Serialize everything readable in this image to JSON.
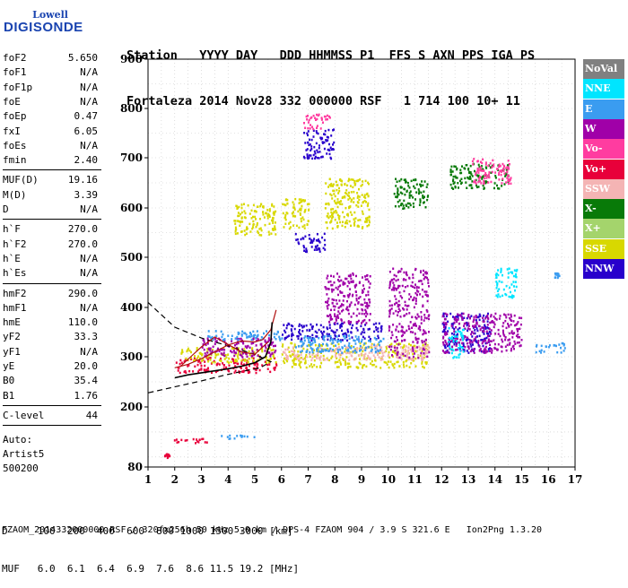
{
  "logo": {
    "line1": "Lowell",
    "line2": "DIGISONDE"
  },
  "header": {
    "row1": "Station   YYYY DAY   DDD HHMMSS P1  FFS S AXN PPS IGA PS",
    "row2": "Fortaleza 2014 Nov28 332 000000 RSF   1 714 100 10+ 11"
  },
  "params_group1": [
    {
      "k": "foF2",
      "v": "5.650"
    },
    {
      "k": "foF1",
      "v": "N/A"
    },
    {
      "k": "foF1p",
      "v": "N/A"
    },
    {
      "k": "foE",
      "v": "N/A"
    },
    {
      "k": "foEp",
      "v": "0.47"
    },
    {
      "k": "fxI",
      "v": "6.05"
    },
    {
      "k": "foEs",
      "v": "N/A"
    },
    {
      "k": "fmin",
      "v": "2.40"
    }
  ],
  "params_group2": [
    {
      "k": "MUF(D)",
      "v": "19.16"
    },
    {
      "k": "M(D)",
      "v": "3.39"
    },
    {
      "k": "D",
      "v": "N/A"
    }
  ],
  "params_group3": [
    {
      "k": "h`F",
      "v": "270.0"
    },
    {
      "k": "h`F2",
      "v": "270.0"
    },
    {
      "k": "h`E",
      "v": "N/A"
    },
    {
      "k": "h`Es",
      "v": "N/A"
    }
  ],
  "params_group4": [
    {
      "k": "hmF2",
      "v": "290.0"
    },
    {
      "k": "hmF1",
      "v": "N/A"
    },
    {
      "k": "hmE",
      "v": "110.0"
    },
    {
      "k": "yF2",
      "v": "33.3"
    },
    {
      "k": "yF1",
      "v": "N/A"
    },
    {
      "k": "yE",
      "v": "20.0"
    },
    {
      "k": "B0",
      "v": "35.4"
    },
    {
      "k": "B1",
      "v": "1.76"
    }
  ],
  "params_group5": [
    {
      "k": "C-level",
      "v": "44"
    }
  ],
  "autoscale": {
    "line1": "Auto:",
    "line2": "Artist5",
    "line3": "500200"
  },
  "legend": [
    {
      "label": "NoVal",
      "bg": "#808080",
      "fg": "#ffffff"
    },
    {
      "label": "NNE",
      "bg": "#00e5ff",
      "fg": "#ffffff"
    },
    {
      "label": "E",
      "bg": "#3a9cf0",
      "fg": "#ffffff"
    },
    {
      "label": "W",
      "bg": "#a000a8",
      "fg": "#ffffff"
    },
    {
      "label": "Vo-",
      "bg": "#ff3ca0",
      "fg": "#ffffff"
    },
    {
      "label": "Vo+",
      "bg": "#e8003a",
      "fg": "#ffffff"
    },
    {
      "label": "SSW",
      "bg": "#f4b4b4",
      "fg": "#ffffff"
    },
    {
      "label": "X-",
      "bg": "#087a08",
      "fg": "#ffffff"
    },
    {
      "label": "X+",
      "bg": "#a4d46c",
      "fg": "#ffffff"
    },
    {
      "label": "SSE",
      "bg": "#d8d800",
      "fg": "#ffffff"
    },
    {
      "label": "NNW",
      "bg": "#2800cc",
      "fg": "#ffffff"
    }
  ],
  "bottom": {
    "row1": "D     100  200  400  600  800 1000 1500 3000 [km]",
    "row2": "MUF   6.0  6.1  6.4  6.9  7.6  8.6 11.5 19.2 [MHz]"
  },
  "footer": "FZAOM_2014332000000.RSF / 320fx256h 50 kHz 5.0 km / DPS-4 FZAOM 904 / 3.9 S 321.6 E   Ion2Png 1.3.20",
  "chart_data": {
    "type": "scatter",
    "title": "",
    "xlabel": "",
    "ylabel": "",
    "xlim": [
      1,
      17
    ],
    "ylim": [
      80,
      900
    ],
    "x_ticks": [
      1,
      2,
      3,
      4,
      5,
      6,
      7,
      8,
      9,
      10,
      11,
      12,
      13,
      14,
      15,
      16,
      17
    ],
    "y_ticks": [
      80,
      200,
      300,
      400,
      500,
      600,
      700,
      800,
      900
    ],
    "grid": true,
    "clusters": [
      {
        "x": [
          1.8,
          3.3
        ],
        "y": [
          130,
          140
        ],
        "color": "#e8003a"
      },
      {
        "x": [
          3.3,
          5.0
        ],
        "y": [
          138,
          145
        ],
        "color": "#3a9cf0"
      },
      {
        "x": [
          1.6,
          1.8
        ],
        "y": [
          100,
          110
        ],
        "color": "#e8003a"
      },
      {
        "x": [
          2.0,
          5.8
        ],
        "y": [
          270,
          300
        ],
        "color": "#e8003a"
      },
      {
        "x": [
          2.2,
          5.8
        ],
        "y": [
          290,
          320
        ],
        "color": "#d8d800"
      },
      {
        "x": [
          3.0,
          5.8
        ],
        "y": [
          300,
          340
        ],
        "color": "#a000a8"
      },
      {
        "x": [
          3.2,
          6.0
        ],
        "y": [
          335,
          355
        ],
        "color": "#3a9cf0"
      },
      {
        "x": [
          4.2,
          5.8
        ],
        "y": [
          545,
          610
        ],
        "color": "#d8d800"
      },
      {
        "x": [
          6.0,
          7.0
        ],
        "y": [
          560,
          620
        ],
        "color": "#d8d800"
      },
      {
        "x": [
          6.5,
          7.6
        ],
        "y": [
          510,
          550
        ],
        "color": "#2800cc"
      },
      {
        "x": [
          7.6,
          9.3
        ],
        "y": [
          560,
          660
        ],
        "color": "#d8d800"
      },
      {
        "x": [
          6.0,
          11.5
        ],
        "y": [
          280,
          330
        ],
        "color": "#d8d800"
      },
      {
        "x": [
          6.0,
          11.5
        ],
        "y": [
          295,
          325
        ],
        "color": "#f4b4b4"
      },
      {
        "x": [
          6.0,
          9.8
        ],
        "y": [
          335,
          370
        ],
        "color": "#2800cc"
      },
      {
        "x": [
          6.5,
          9.8
        ],
        "y": [
          310,
          345
        ],
        "color": "#3a9cf0"
      },
      {
        "x": [
          7.6,
          9.3
        ],
        "y": [
          370,
          470
        ],
        "color": "#a000a8"
      },
      {
        "x": [
          10.0,
          11.5
        ],
        "y": [
          300,
          480
        ],
        "color": "#a000a8"
      },
      {
        "x": [
          10.2,
          11.5
        ],
        "y": [
          600,
          660
        ],
        "color": "#087a08"
      },
      {
        "x": [
          12.0,
          13.8
        ],
        "y": [
          310,
          390
        ],
        "color": "#2800cc"
      },
      {
        "x": [
          12.0,
          15.0
        ],
        "y": [
          310,
          390
        ],
        "color": "#a000a8"
      },
      {
        "x": [
          12.2,
          12.8
        ],
        "y": [
          300,
          360
        ],
        "color": "#00e5ff"
      },
      {
        "x": [
          12.3,
          14.5
        ],
        "y": [
          640,
          690
        ],
        "color": "#087a08"
      },
      {
        "x": [
          13.0,
          14.6
        ],
        "y": [
          650,
          700
        ],
        "color": "#ff3ca0"
      },
      {
        "x": [
          14.0,
          14.8
        ],
        "y": [
          420,
          480
        ],
        "color": "#00e5ff"
      },
      {
        "x": [
          15.5,
          16.6
        ],
        "y": [
          310,
          330
        ],
        "color": "#3a9cf0"
      },
      {
        "x": [
          16.2,
          16.4
        ],
        "y": [
          460,
          470
        ],
        "color": "#3a9cf0"
      },
      {
        "x": [
          6.8,
          8.0
        ],
        "y": [
          700,
          760
        ],
        "color": "#2800cc"
      },
      {
        "x": [
          6.8,
          7.8
        ],
        "y": [
          760,
          790
        ],
        "color": "#ff3ca0"
      }
    ],
    "trace_black": [
      {
        "f": 2.0,
        "h": 258
      },
      {
        "f": 2.5,
        "h": 264
      },
      {
        "f": 3.0,
        "h": 268
      },
      {
        "f": 3.5,
        "h": 272
      },
      {
        "f": 4.0,
        "h": 276
      },
      {
        "f": 4.5,
        "h": 281
      },
      {
        "f": 5.0,
        "h": 288
      },
      {
        "f": 5.4,
        "h": 300
      },
      {
        "f": 5.6,
        "h": 330
      },
      {
        "f": 5.65,
        "h": 370
      }
    ],
    "trace_red_x": [
      {
        "f": 2.0,
        "h": 278
      },
      {
        "f": 2.5,
        "h": 285
      },
      {
        "f": 3.0,
        "h": 296
      },
      {
        "f": 3.5,
        "h": 310
      },
      {
        "f": 4.0,
        "h": 324
      },
      {
        "f": 4.5,
        "h": 332
      },
      {
        "f": 5.0,
        "h": 330
      },
      {
        "f": 5.3,
        "h": 335
      },
      {
        "f": 5.6,
        "h": 355
      },
      {
        "f": 5.8,
        "h": 395
      }
    ],
    "trace_red_o": [
      {
        "f": 2.2,
        "h": 280
      },
      {
        "f": 2.6,
        "h": 300
      },
      {
        "f": 3.0,
        "h": 320
      },
      {
        "f": 3.5,
        "h": 340
      },
      {
        "f": 4.0,
        "h": 325
      },
      {
        "f": 4.5,
        "h": 310
      },
      {
        "f": 5.0,
        "h": 305
      },
      {
        "f": 5.5,
        "h": 330
      }
    ],
    "profile_dashed": [
      {
        "f": 1.0,
        "h": 410
      },
      {
        "f": 2.0,
        "h": 360
      },
      {
        "f": 3.0,
        "h": 338
      },
      {
        "f": 4.0,
        "h": 322
      },
      {
        "f": 5.0,
        "h": 305
      },
      {
        "f": 5.6,
        "h": 290
      },
      {
        "f": 5.2,
        "h": 278
      },
      {
        "f": 4.0,
        "h": 265
      },
      {
        "f": 3.0,
        "h": 252
      },
      {
        "f": 2.0,
        "h": 240
      },
      {
        "f": 1.0,
        "h": 228
      }
    ]
  }
}
